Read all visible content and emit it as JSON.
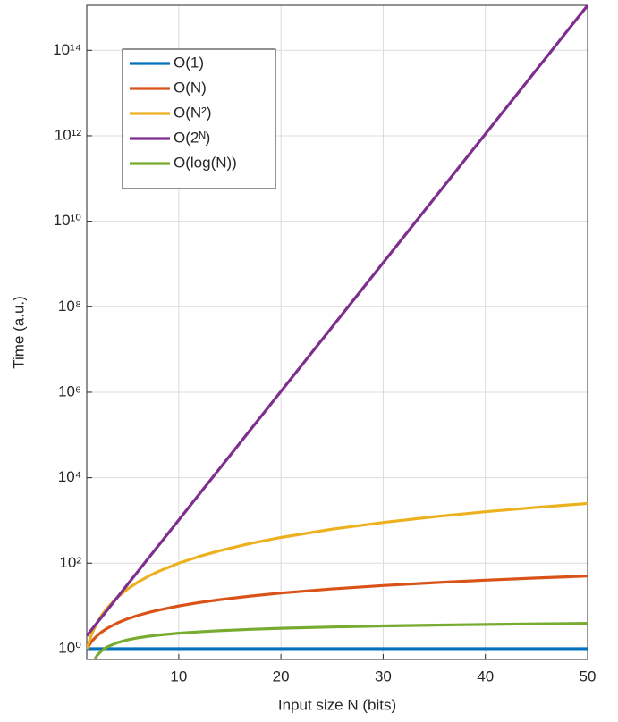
{
  "chart_data": {
    "type": "line",
    "log_y": true,
    "grid": true,
    "legend": "top-left",
    "xlabel": "Input size N (bits)",
    "ylabel": "Time (a.u.)",
    "x": [
      1,
      1.5,
      2,
      2.5,
      3,
      4,
      5,
      6,
      7,
      8,
      10,
      12,
      14,
      17,
      20,
      25,
      30,
      35,
      40,
      45,
      50
    ],
    "xlim": [
      1,
      50
    ],
    "xticks": [
      10,
      20,
      30,
      40,
      50
    ],
    "ylim": [
      0.56,
      1125900000000000.0
    ],
    "yticks": [
      {
        "value": 1,
        "label": "10⁰"
      },
      {
        "value": 100,
        "label": "10²"
      },
      {
        "value": 10000,
        "label": "10⁴"
      },
      {
        "value": 1000000,
        "label": "10⁶"
      },
      {
        "value": 100000000,
        "label": "10⁸"
      },
      {
        "value": 10000000000,
        "label": "10¹⁰"
      },
      {
        "value": 1000000000000,
        "label": "10¹²"
      },
      {
        "value": 100000000000000,
        "label": "10¹⁴"
      }
    ],
    "series": [
      {
        "name": "O(1)",
        "color": "#0072BD",
        "values": [
          1,
          1,
          1,
          1,
          1,
          1,
          1,
          1,
          1,
          1,
          1,
          1,
          1,
          1,
          1,
          1,
          1,
          1,
          1,
          1,
          1
        ]
      },
      {
        "name": "O(N)",
        "color": "#D95319",
        "values": [
          1,
          1.5,
          2,
          2.5,
          3,
          4,
          5,
          6,
          7,
          8,
          10,
          12,
          14,
          17,
          20,
          25,
          30,
          35,
          40,
          45,
          50
        ]
      },
      {
        "name": "O(N²)",
        "color": "#EDB120",
        "values": [
          1,
          2.25,
          4,
          6.25,
          9,
          16,
          25,
          36,
          49,
          64,
          100,
          144,
          196,
          289,
          400,
          625,
          900,
          1225,
          1600,
          2025,
          2500
        ]
      },
      {
        "name": "O(2ᴺ)",
        "color": "#7E2F8E",
        "values": [
          2,
          2.83,
          4,
          5.66,
          8,
          16,
          32,
          64,
          128,
          256,
          1024,
          4096,
          16384,
          131072,
          1048576,
          33554432,
          1073741824,
          34359738368,
          1099511627776,
          35184372088832,
          1125899906842624
        ]
      },
      {
        "name": "O(log(N))",
        "color": "#77AC30",
        "values": [
          null,
          0.405,
          0.693,
          0.916,
          1.099,
          1.386,
          1.609,
          1.792,
          1.946,
          2.079,
          2.303,
          2.485,
          2.639,
          2.833,
          2.996,
          3.219,
          3.401,
          3.555,
          3.689,
          3.807,
          3.912
        ]
      }
    ]
  }
}
